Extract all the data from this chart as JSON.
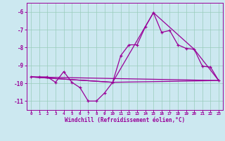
{
  "xlabel": "Windchill (Refroidissement éolien,°C)",
  "bg_color": "#cce8f0",
  "grid_color": "#99ccbb",
  "line_color": "#990099",
  "xlim": [
    -0.5,
    23.5
  ],
  "ylim": [
    -11.5,
    -5.5
  ],
  "yticks": [
    -6,
    -7,
    -8,
    -9,
    -10,
    -11
  ],
  "xticks": [
    0,
    1,
    2,
    3,
    4,
    5,
    6,
    7,
    8,
    9,
    10,
    11,
    12,
    13,
    14,
    15,
    16,
    17,
    18,
    19,
    20,
    21,
    22,
    23
  ],
  "line1": [
    [
      0,
      -9.65
    ],
    [
      1,
      -9.65
    ],
    [
      2,
      -9.65
    ],
    [
      3,
      -9.95
    ],
    [
      4,
      -9.35
    ],
    [
      5,
      -9.95
    ],
    [
      6,
      -10.25
    ],
    [
      7,
      -11.0
    ],
    [
      8,
      -11.0
    ],
    [
      9,
      -10.55
    ],
    [
      10,
      -9.95
    ],
    [
      11,
      -8.45
    ],
    [
      12,
      -7.85
    ],
    [
      13,
      -7.85
    ],
    [
      14,
      -6.85
    ],
    [
      15,
      -6.05
    ],
    [
      16,
      -7.15
    ],
    [
      17,
      -7.05
    ],
    [
      18,
      -7.85
    ],
    [
      19,
      -8.05
    ],
    [
      20,
      -8.1
    ],
    [
      21,
      -9.05
    ],
    [
      22,
      -9.1
    ],
    [
      23,
      -9.85
    ]
  ],
  "line2": [
    [
      0,
      -9.65
    ],
    [
      10,
      -9.95
    ],
    [
      15,
      -6.05
    ],
    [
      20,
      -8.1
    ],
    [
      23,
      -9.85
    ]
  ],
  "line3": [
    [
      0,
      -9.65
    ],
    [
      23,
      -9.85
    ]
  ],
  "line4": [
    [
      0,
      -9.65
    ],
    [
      10,
      -9.95
    ],
    [
      23,
      -9.85
    ]
  ]
}
